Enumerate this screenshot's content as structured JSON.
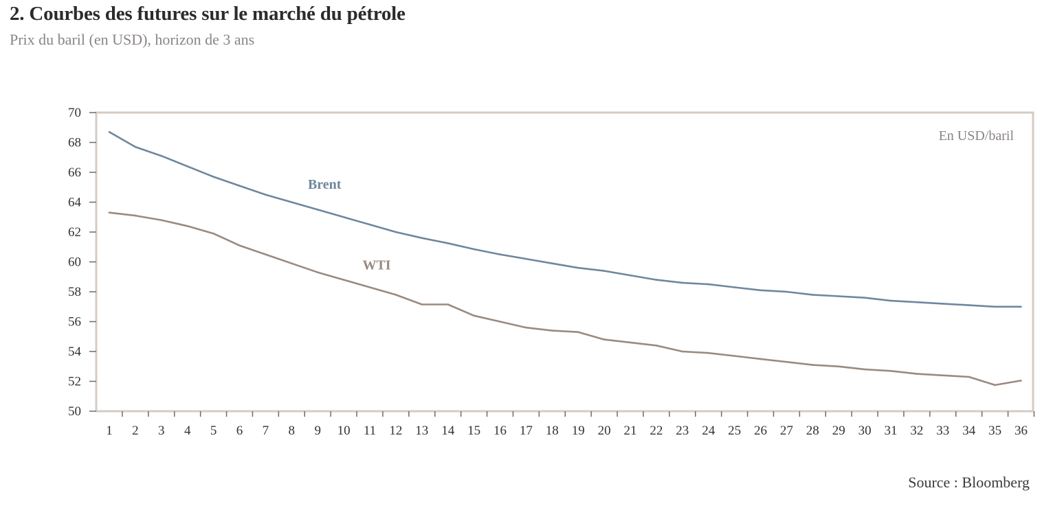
{
  "header": {
    "title": "2. Courbes des futures sur le marché du pétrole",
    "subtitle": "Prix du baril (en USD), horizon de 3 ans"
  },
  "footer": {
    "source": "Source : Bloomberg"
  },
  "colors": {
    "brent": "#6e879d",
    "wti": "#9a8a80",
    "frame": "#d6cbc2",
    "text": "#333333"
  },
  "chart_data": {
    "type": "line",
    "unit_label": "En USD/baril",
    "x": [
      1,
      2,
      3,
      4,
      5,
      6,
      7,
      8,
      9,
      10,
      11,
      12,
      13,
      14,
      15,
      16,
      17,
      18,
      19,
      20,
      21,
      22,
      23,
      24,
      25,
      26,
      27,
      28,
      29,
      30,
      31,
      32,
      33,
      34,
      35,
      36
    ],
    "ylim": [
      50,
      70
    ],
    "yticks": [
      50,
      52,
      54,
      56,
      58,
      60,
      62,
      64,
      66,
      68,
      70
    ],
    "grid": false,
    "series": [
      {
        "name": "Brent",
        "color": "#6e879d",
        "label_pos": {
          "x": 9,
          "y": 64.9
        },
        "values": [
          68.7,
          67.7,
          67.1,
          66.4,
          65.7,
          65.1,
          64.5,
          64.0,
          63.5,
          63.0,
          62.5,
          62.0,
          61.6,
          61.25,
          60.85,
          60.5,
          60.2,
          59.9,
          59.6,
          59.4,
          59.1,
          58.8,
          58.6,
          58.5,
          58.3,
          58.1,
          58.0,
          57.8,
          57.7,
          57.6,
          57.4,
          57.3,
          57.2,
          57.1,
          57.0,
          57.0
        ]
      },
      {
        "name": "WTI",
        "color": "#9a8a80",
        "label_pos": {
          "x": 11,
          "y": 59.5
        },
        "values": [
          63.3,
          63.1,
          62.8,
          62.4,
          61.9,
          61.1,
          60.5,
          59.9,
          59.3,
          58.8,
          58.3,
          57.8,
          57.15,
          57.15,
          56.4,
          56.0,
          55.6,
          55.4,
          55.3,
          54.8,
          54.6,
          54.4,
          54.0,
          53.9,
          53.7,
          53.5,
          53.3,
          53.1,
          53.0,
          52.8,
          52.7,
          52.5,
          52.4,
          52.3,
          51.75,
          52.05
        ]
      }
    ]
  }
}
